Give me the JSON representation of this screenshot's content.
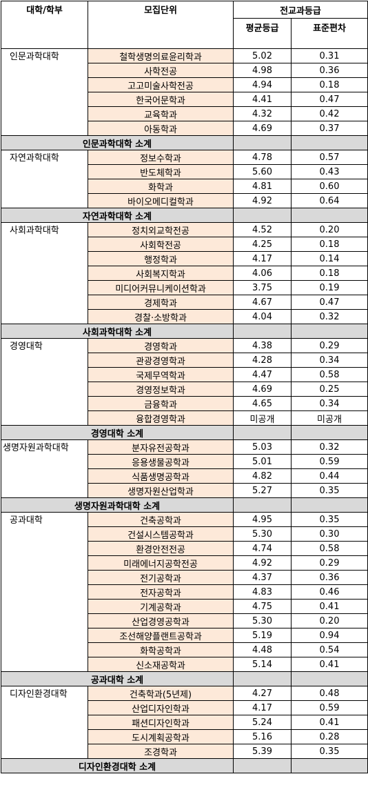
{
  "header": {
    "college": "대학/학부",
    "unit": "모집단위",
    "grade_group": "전교과등급",
    "avg": "평균등급",
    "std": "표준편차"
  },
  "groups": [
    {
      "college": "인문과학대학",
      "rows": [
        {
          "dept": "철학생명의료윤리학과",
          "avg": "5.02",
          "std": "0.31"
        },
        {
          "dept": "사학전공",
          "avg": "4.98",
          "std": "0.36"
        },
        {
          "dept": "고고미술사학전공",
          "avg": "4.94",
          "std": "0.18"
        },
        {
          "dept": "한국어문학과",
          "avg": "4.41",
          "std": "0.47"
        },
        {
          "dept": "교육학과",
          "avg": "4.32",
          "std": "0.42"
        },
        {
          "dept": "아동학과",
          "avg": "4.69",
          "std": "0.37"
        }
      ],
      "subtotal": "인문과학대학 소계"
    },
    {
      "college": "자연과학대학",
      "rows": [
        {
          "dept": "정보수학과",
          "avg": "4.78",
          "std": "0.57"
        },
        {
          "dept": "반도체학과",
          "avg": "5.60",
          "std": "0.43"
        },
        {
          "dept": "화학과",
          "avg": "4.81",
          "std": "0.60"
        },
        {
          "dept": "바이오메디컬학과",
          "avg": "4.92",
          "std": "0.64"
        }
      ],
      "subtotal": "자연과학대학 소계"
    },
    {
      "college": "사회과학대학",
      "rows": [
        {
          "dept": "정치외교학전공",
          "avg": "4.52",
          "std": "0.20"
        },
        {
          "dept": "사회학전공",
          "avg": "4.25",
          "std": "0.18"
        },
        {
          "dept": "행정학과",
          "avg": "4.17",
          "std": "0.14"
        },
        {
          "dept": "사회복지학과",
          "avg": "4.06",
          "std": "0.18"
        },
        {
          "dept": "미디어커뮤니케이션학과",
          "avg": "3.75",
          "std": "0.19"
        },
        {
          "dept": "경제학과",
          "avg": "4.67",
          "std": "0.47"
        },
        {
          "dept": "경찰·소방학과",
          "avg": "4.04",
          "std": "0.32"
        }
      ],
      "subtotal": "사회과학대학 소계"
    },
    {
      "college": "경영대학",
      "rows": [
        {
          "dept": "경영학과",
          "avg": "4.38",
          "std": "0.29"
        },
        {
          "dept": "관광경영학과",
          "avg": "4.28",
          "std": "0.34"
        },
        {
          "dept": "국제무역학과",
          "avg": "4.47",
          "std": "0.58"
        },
        {
          "dept": "경영정보학과",
          "avg": "4.69",
          "std": "0.25"
        },
        {
          "dept": "금융학과",
          "avg": "4.65",
          "std": "0.34"
        },
        {
          "dept": "융합경영학과",
          "avg": "미공개",
          "std": "미공개"
        }
      ],
      "subtotal": "경영대학 소계"
    },
    {
      "college": "생명자원과학대학",
      "rows": [
        {
          "dept": "분자유전공학과",
          "avg": "5.03",
          "std": "0.32"
        },
        {
          "dept": "응용생물공학과",
          "avg": "5.01",
          "std": "0.59"
        },
        {
          "dept": "식품생명공학과",
          "avg": "4.82",
          "std": "0.44"
        },
        {
          "dept": "생명자원산업학과",
          "avg": "5.27",
          "std": "0.35"
        }
      ],
      "subtotal": "생명자원과학대학 소계"
    },
    {
      "college": "공과대학",
      "rows": [
        {
          "dept": "건축공학과",
          "avg": "4.95",
          "std": "0.35"
        },
        {
          "dept": "건설시스템공학과",
          "avg": "5.30",
          "std": "0.30"
        },
        {
          "dept": "환경안전전공",
          "avg": "4.74",
          "std": "0.58"
        },
        {
          "dept": "미래에너지공학전공",
          "avg": "4.92",
          "std": "0.29"
        },
        {
          "dept": "전기공학과",
          "avg": "4.37",
          "std": "0.36"
        },
        {
          "dept": "전자공학과",
          "avg": "4.83",
          "std": "0.46"
        },
        {
          "dept": "기계공학과",
          "avg": "4.75",
          "std": "0.41"
        },
        {
          "dept": "산업경영공학과",
          "avg": "5.30",
          "std": "0.20"
        },
        {
          "dept": "조선해양플랜트공학과",
          "avg": "5.19",
          "std": "0.94"
        },
        {
          "dept": "화학공학과",
          "avg": "4.48",
          "std": "0.54"
        },
        {
          "dept": "신소재공학과",
          "avg": "5.14",
          "std": "0.41"
        }
      ],
      "subtotal": "공과대학 소계"
    },
    {
      "college": "디자인환경대학",
      "rows": [
        {
          "dept": "건축학과(5년제)",
          "avg": "4.27",
          "std": "0.48"
        },
        {
          "dept": "산업디자인학과",
          "avg": "4.17",
          "std": "0.59"
        },
        {
          "dept": "패션디자인학과",
          "avg": "5.24",
          "std": "0.41"
        },
        {
          "dept": "도시계획공학과",
          "avg": "5.16",
          "std": "0.28"
        },
        {
          "dept": "조경학과",
          "avg": "5.39",
          "std": "0.35"
        }
      ],
      "subtotal": "디자인환경대학 소계"
    }
  ]
}
